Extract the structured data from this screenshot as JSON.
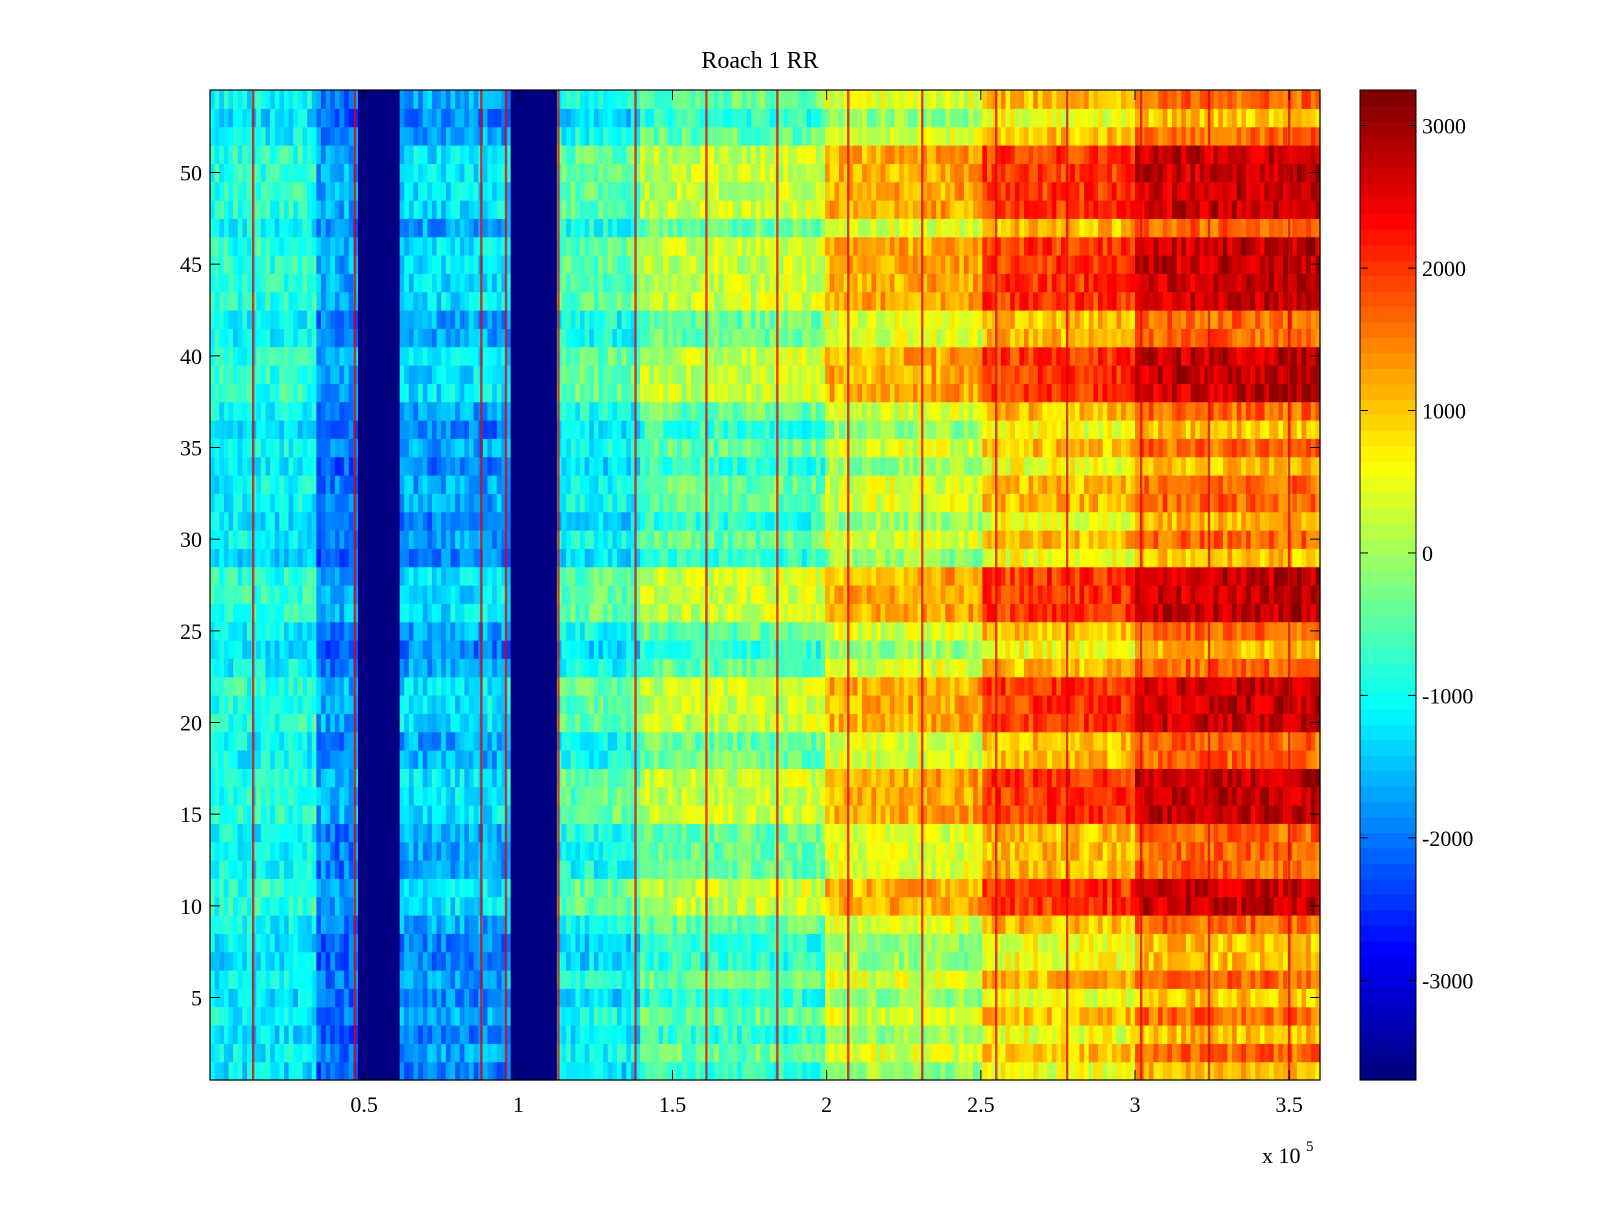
{
  "chart_data": {
    "type": "heatmap",
    "title": "Roach 1 RR",
    "xlabel": "",
    "ylabel": "",
    "x_exponent_label": "x 10",
    "x_exponent_power": "5",
    "xlim": [
      0,
      3.6
    ],
    "ylim": [
      0.5,
      54.5
    ],
    "x_ticks": [
      0.5,
      1,
      1.5,
      2,
      2.5,
      3,
      3.5
    ],
    "x_tick_labels": [
      "0.5",
      "1",
      "1.5",
      "2",
      "2.5",
      "3",
      "3.5"
    ],
    "y_ticks": [
      5,
      10,
      15,
      20,
      25,
      30,
      35,
      40,
      45,
      50
    ],
    "y_tick_labels": [
      "5",
      "10",
      "15",
      "20",
      "25",
      "30",
      "35",
      "40",
      "45",
      "50"
    ],
    "colormap": "jet",
    "colorbar": {
      "clim": [
        -3700,
        3250
      ],
      "ticks": [
        -3000,
        -2000,
        -1000,
        0,
        1000,
        2000,
        3000
      ],
      "tick_labels": [
        "-3000",
        "-2000",
        "-1000",
        "0",
        "1000",
        "2000",
        "3000"
      ]
    },
    "rows": 54,
    "column_bands": [
      {
        "x_from": 0.0,
        "x_to": 0.35,
        "base_value": -1100
      },
      {
        "x_from": 0.35,
        "x_to": 0.48,
        "base_value": -2000
      },
      {
        "x_from": 0.48,
        "x_to": 0.61,
        "base_value": -3700
      },
      {
        "x_from": 0.61,
        "x_to": 0.98,
        "base_value": -1700
      },
      {
        "x_from": 0.98,
        "x_to": 1.12,
        "base_value": -3700
      },
      {
        "x_from": 1.12,
        "x_to": 1.4,
        "base_value": -1000
      },
      {
        "x_from": 1.4,
        "x_to": 2.0,
        "base_value": -400
      },
      {
        "x_from": 2.0,
        "x_to": 2.5,
        "base_value": 400
      },
      {
        "x_from": 2.5,
        "x_to": 3.0,
        "base_value": 1100
      },
      {
        "x_from": 3.0,
        "x_to": 3.6,
        "base_value": 1700
      }
    ],
    "spike_columns": [
      0.14,
      0.47,
      0.88,
      0.96,
      1.13,
      1.38,
      1.61,
      1.84,
      2.07,
      2.31,
      2.55,
      2.78,
      3.02,
      3.24,
      3.5
    ],
    "high_rows": [
      10,
      11,
      15,
      16,
      17,
      20,
      21,
      22,
      26,
      27,
      28,
      38,
      39,
      40,
      43,
      44,
      45,
      46,
      48,
      49,
      50,
      51
    ],
    "low_rows": [
      1,
      3,
      5,
      7,
      8,
      24,
      29,
      31,
      34,
      36,
      53
    ]
  }
}
